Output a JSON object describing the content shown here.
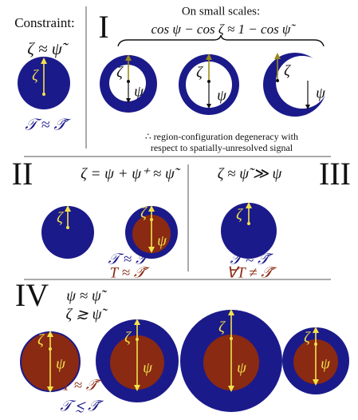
{
  "constraint": {
    "title": "Constraint:",
    "relation": "ζ ≈ ψ̃",
    "template": "𝒯 ≈ 𝒯̃",
    "circle": {
      "labels": [
        "ζ"
      ]
    }
  },
  "panel_I": {
    "numeral": "I",
    "heading": "On small scales:",
    "equation": "cos ψ − cos ζ ≈ 1 − cos ψ̃",
    "note": [
      "∴ region-configuration degeneracy with",
      "respect to spatially-unresolved signal"
    ],
    "circles": [
      {
        "labels": [
          "ζ",
          "ψ"
        ]
      },
      {
        "labels": [
          "ζ",
          "ψ"
        ]
      },
      {
        "labels": [
          "ζ",
          "ψ"
        ]
      }
    ]
  },
  "panel_II": {
    "numeral": "II",
    "equation": "ζ = ψ + ψ⁺ ≈ ψ̃",
    "relations": [
      "𝒯 ≈ 𝒯̃",
      "T ≈ 𝒯̃"
    ],
    "circles": [
      {
        "labels": [
          "ζ"
        ]
      },
      {
        "labels": [
          "ζ",
          "ψ"
        ]
      }
    ]
  },
  "panel_III": {
    "numeral": "III",
    "equation": "ζ ≈ ψ̃ ≫ ψ",
    "relations": [
      "𝒯 ≈ 𝒯̃",
      "∀T ≠ 𝒯̃"
    ],
    "circles": [
      {
        "labels": [
          "ζ"
        ]
      }
    ]
  },
  "panel_IV": {
    "numeral": "IV",
    "equations": [
      "ψ ≈ ψ̃",
      "ζ ≳ ψ̃"
    ],
    "relations": [
      "T ≈ 𝒯̃",
      "𝒯 ≲ 𝒯̃"
    ],
    "circles": [
      {
        "labels": [
          "ζ",
          "ψ"
        ]
      },
      {
        "labels": [
          "ζ",
          "ψ"
        ]
      },
      {
        "labels": [
          "ζ",
          "ψ"
        ]
      },
      {
        "labels": [
          "ζ",
          "ψ"
        ]
      }
    ]
  }
}
